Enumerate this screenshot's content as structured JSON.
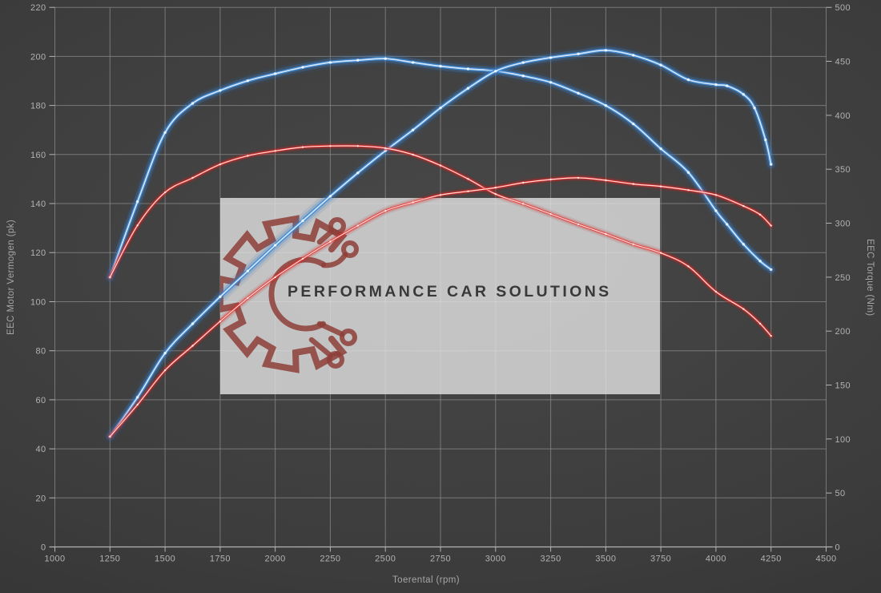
{
  "watermark": {
    "text": "PERFORMANCE CAR SOLUTIONS",
    "box_color": "rgba(228,228,228,0.80)",
    "text_color": "#393939",
    "logo_color": "#8e3f38"
  },
  "colors": {
    "background_center": "#484848",
    "background_edge": "#2b2b2b",
    "gridline": "#8b8b8b",
    "axis_line": "#b4b4b4",
    "tick_text": "#b2b2b2",
    "axis_title_text": "#a6a6a6",
    "blue_curve": "#3f87d2",
    "red_curve": "#e42b26"
  },
  "chart_data": {
    "type": "line",
    "title": "",
    "xlabel": "Toerental (rpm)",
    "ylabel_left": "EEC Motor Vermogen (pk)",
    "ylabel_right": "EEC Torque (Nm)",
    "x_range": [
      1000,
      4500
    ],
    "y_left_range": [
      0,
      220
    ],
    "y_right_range": [
      0,
      500
    ],
    "x_ticks": [
      1000,
      1250,
      1500,
      1750,
      2000,
      2250,
      2500,
      2750,
      3000,
      3250,
      3500,
      3750,
      4000,
      4250,
      4500
    ],
    "y_left_ticks": [
      0,
      20,
      40,
      60,
      80,
      100,
      120,
      140,
      160,
      180,
      200,
      220
    ],
    "y_right_ticks": [
      0,
      50,
      100,
      150,
      200,
      250,
      300,
      350,
      400,
      450,
      500
    ],
    "grid": true,
    "legend": "none",
    "series": [
      {
        "name": "blue-torque",
        "axis": "right",
        "unit": "Nm",
        "color": "#3f87d2",
        "core": "#cfe6fb",
        "glow": "#1e5fae",
        "widths": [
          16,
          10,
          4.5,
          1.7
        ],
        "points": [
          [
            1250,
            250
          ],
          [
            1375,
            320
          ],
          [
            1500,
            384
          ],
          [
            1625,
            411
          ],
          [
            1750,
            423
          ],
          [
            1875,
            432
          ],
          [
            2000,
            438.5
          ],
          [
            2125,
            444.5
          ],
          [
            2250,
            449
          ],
          [
            2375,
            451
          ],
          [
            2500,
            452.5
          ],
          [
            2625,
            449
          ],
          [
            2750,
            445.5
          ],
          [
            2875,
            443
          ],
          [
            3000,
            441
          ],
          [
            3125,
            436.5
          ],
          [
            3250,
            430.5
          ],
          [
            3375,
            420.5
          ],
          [
            3500,
            409
          ],
          [
            3625,
            392
          ],
          [
            3750,
            369
          ],
          [
            3875,
            347
          ],
          [
            4000,
            311.5
          ],
          [
            4050,
            299
          ],
          [
            4125,
            280.5
          ],
          [
            4200,
            265
          ],
          [
            4250,
            257
          ]
        ]
      },
      {
        "name": "blue-power",
        "axis": "left",
        "unit": "pk",
        "color": "#3f87d2",
        "core": "#cfe6fb",
        "glow": "#1e5fae",
        "widths": [
          16,
          10,
          4.5,
          1.7
        ],
        "points": [
          [
            1250,
            45
          ],
          [
            1375,
            61
          ],
          [
            1500,
            79
          ],
          [
            1625,
            91
          ],
          [
            1750,
            102
          ],
          [
            1875,
            112.5
          ],
          [
            2000,
            123
          ],
          [
            2125,
            133
          ],
          [
            2250,
            143
          ],
          [
            2375,
            152.5
          ],
          [
            2500,
            161.5
          ],
          [
            2625,
            170
          ],
          [
            2750,
            179
          ],
          [
            2875,
            187
          ],
          [
            3000,
            194
          ],
          [
            3125,
            197.5
          ],
          [
            3250,
            199.5
          ],
          [
            3375,
            201
          ],
          [
            3500,
            202.5
          ],
          [
            3625,
            200.5
          ],
          [
            3750,
            196.5
          ],
          [
            3875,
            190.5
          ],
          [
            4000,
            188.5
          ],
          [
            4050,
            188
          ],
          [
            4125,
            184.5
          ],
          [
            4175,
            179
          ],
          [
            4225,
            166
          ],
          [
            4250,
            156
          ]
        ]
      },
      {
        "name": "red-torque",
        "axis": "right",
        "unit": "Nm",
        "color": "#e42b26",
        "core": "#ffdcdc",
        "glow": "#b41414",
        "widths": [
          10,
          6,
          2.8,
          1.2
        ],
        "points": [
          [
            1250,
            250
          ],
          [
            1375,
            298
          ],
          [
            1500,
            328.5
          ],
          [
            1625,
            342
          ],
          [
            1750,
            354.5
          ],
          [
            1875,
            362.5
          ],
          [
            2000,
            367
          ],
          [
            2125,
            370.5
          ],
          [
            2250,
            371.5
          ],
          [
            2375,
            371.5
          ],
          [
            2500,
            369.5
          ],
          [
            2625,
            363.5
          ],
          [
            2750,
            353.5
          ],
          [
            2875,
            341
          ],
          [
            3000,
            327
          ],
          [
            3125,
            318
          ],
          [
            3250,
            308.5
          ],
          [
            3375,
            299
          ],
          [
            3500,
            290
          ],
          [
            3625,
            280.5
          ],
          [
            3750,
            272.5
          ],
          [
            3875,
            260
          ],
          [
            4000,
            236.5
          ],
          [
            4125,
            220.5
          ],
          [
            4200,
            207
          ],
          [
            4250,
            195.5
          ]
        ]
      },
      {
        "name": "red-power",
        "axis": "left",
        "unit": "pk",
        "color": "#e42b26",
        "core": "#ffdcdc",
        "glow": "#b41414",
        "widths": [
          10,
          6,
          2.8,
          1.2
        ],
        "points": [
          [
            1250,
            45
          ],
          [
            1375,
            58
          ],
          [
            1500,
            72
          ],
          [
            1625,
            82
          ],
          [
            1750,
            92
          ],
          [
            1875,
            101.5
          ],
          [
            2000,
            110
          ],
          [
            2125,
            117.5
          ],
          [
            2250,
            124.5
          ],
          [
            2375,
            131
          ],
          [
            2500,
            137
          ],
          [
            2625,
            140.5
          ],
          [
            2750,
            143.5
          ],
          [
            2875,
            145
          ],
          [
            3000,
            146.5
          ],
          [
            3125,
            148.5
          ],
          [
            3250,
            149.8
          ],
          [
            3375,
            150.5
          ],
          [
            3500,
            149.5
          ],
          [
            3625,
            148
          ],
          [
            3750,
            147
          ],
          [
            3875,
            145.5
          ],
          [
            4000,
            143.5
          ],
          [
            4125,
            139
          ],
          [
            4200,
            135.5
          ],
          [
            4250,
            131
          ]
        ]
      }
    ]
  }
}
